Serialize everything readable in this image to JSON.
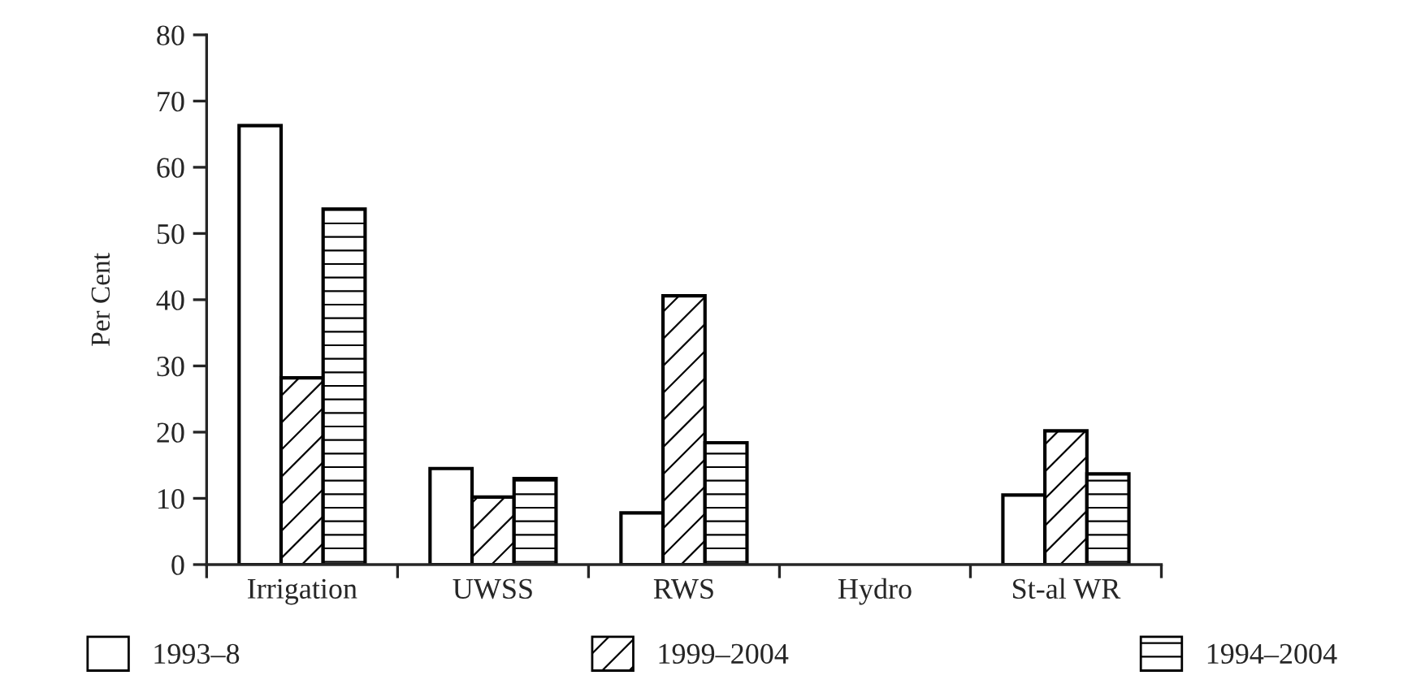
{
  "chart_data": {
    "type": "bar",
    "ylabel": "Per Cent",
    "categories": [
      "Irrigation",
      "UWSS",
      "RWS",
      "Hydro",
      "St-al WR"
    ],
    "series": [
      {
        "name": "1993–8",
        "color": "#ffffff",
        "values": [
          66.3,
          14.5,
          7.8,
          null,
          10.5
        ]
      },
      {
        "name": "1999–2004",
        "color": "#000000",
        "values": [
          28.2,
          10.2,
          40.6,
          null,
          20.2
        ]
      },
      {
        "name": "1994–2004",
        "color": "#000000",
        "values": [
          53.7,
          13.0,
          18.4,
          null,
          13.7
        ]
      }
    ],
    "ylim": [
      0,
      80
    ],
    "yticks": [
      0,
      10,
      20,
      30,
      40,
      50,
      60,
      70,
      80
    ],
    "grid": false,
    "legend": "bottom"
  }
}
